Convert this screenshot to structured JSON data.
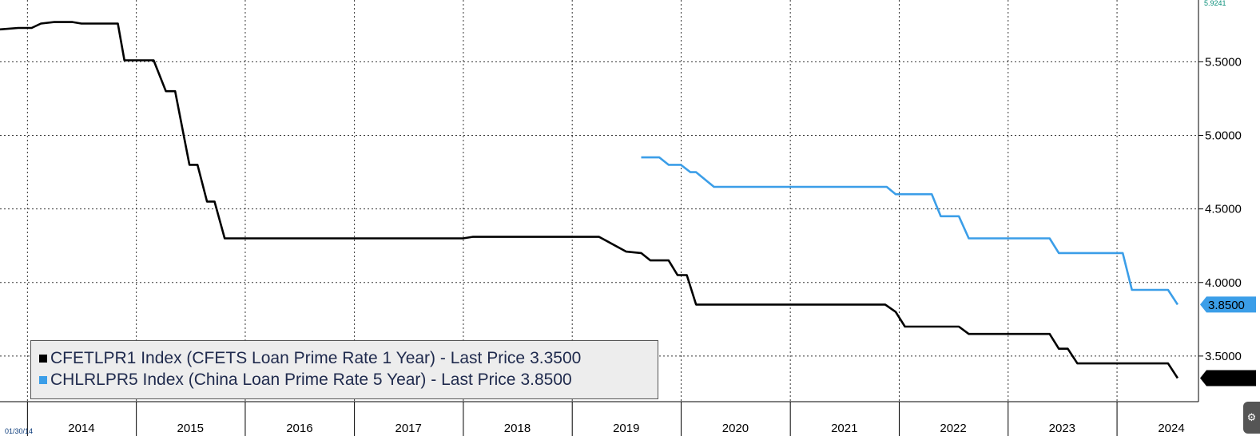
{
  "chart_data": {
    "type": "line",
    "y_ticks": [
      "5.5000",
      "5.0000",
      "4.5000",
      "4.0000",
      "3.5000"
    ],
    "y_tick_values": [
      5.5,
      5.0,
      4.5,
      4.0,
      3.5
    ],
    "y_top_label": "5.9241",
    "ylim": [
      3.19,
      5.92
    ],
    "x_labels": [
      "2014",
      "2015",
      "2016",
      "2017",
      "2018",
      "2019",
      "2020",
      "2021",
      "2022",
      "2023",
      "2024"
    ],
    "start_date_label": "01/30/14",
    "xlim": [
      "2013-10-01",
      "2024-09-30"
    ],
    "grid": true,
    "legend_position": "bottom-left",
    "series": [
      {
        "name": "CFETLPR1 Index (CFETS Loan Prime Rate 1 Year) - Last Price",
        "last_price": "3.3500",
        "color": "#000000",
        "points": [
          [
            "2013-10-01",
            5.72
          ],
          [
            "2013-12-01",
            5.73
          ],
          [
            "2014-01-15",
            5.73
          ],
          [
            "2014-02-15",
            5.76
          ],
          [
            "2014-04-01",
            5.77
          ],
          [
            "2014-06-01",
            5.77
          ],
          [
            "2014-07-01",
            5.76
          ],
          [
            "2014-10-31",
            5.76
          ],
          [
            "2014-11-22",
            5.51
          ],
          [
            "2015-02-28",
            5.51
          ],
          [
            "2015-04-10",
            5.3
          ],
          [
            "2015-05-11",
            5.3
          ],
          [
            "2015-06-28",
            4.8
          ],
          [
            "2015-07-25",
            4.8
          ],
          [
            "2015-08-26",
            4.55
          ],
          [
            "2015-09-20",
            4.55
          ],
          [
            "2015-10-24",
            4.3
          ],
          [
            "2017-12-31",
            4.3
          ],
          [
            "2018-02-01",
            4.31
          ],
          [
            "2019-04-01",
            4.31
          ],
          [
            "2019-07-01",
            4.21
          ],
          [
            "2019-08-20",
            4.2
          ],
          [
            "2019-09-20",
            4.15
          ],
          [
            "2019-11-20",
            4.15
          ],
          [
            "2019-12-20",
            4.05
          ],
          [
            "2020-01-20",
            4.05
          ],
          [
            "2020-02-20",
            3.85
          ],
          [
            "2021-11-15",
            3.85
          ],
          [
            "2021-12-20",
            3.8
          ],
          [
            "2022-01-20",
            3.7
          ],
          [
            "2022-07-20",
            3.7
          ],
          [
            "2022-08-22",
            3.65
          ],
          [
            "2023-05-20",
            3.65
          ],
          [
            "2023-06-20",
            3.55
          ],
          [
            "2023-07-20",
            3.55
          ],
          [
            "2023-08-21",
            3.45
          ],
          [
            "2024-06-20",
            3.45
          ],
          [
            "2024-07-22",
            3.35
          ]
        ]
      },
      {
        "name": "CHLRLPR5 Index (China Loan Prime Rate 5 Year) - Last Price",
        "last_price": "3.8500",
        "color": "#3b9ee8",
        "points": [
          [
            "2019-08-20",
            4.85
          ],
          [
            "2019-10-20",
            4.85
          ],
          [
            "2019-11-20",
            4.8
          ],
          [
            "2019-12-31",
            4.8
          ],
          [
            "2020-02-01",
            4.75
          ],
          [
            "2020-02-20",
            4.75
          ],
          [
            "2020-04-20",
            4.65
          ],
          [
            "2021-11-20",
            4.65
          ],
          [
            "2021-12-20",
            4.6
          ],
          [
            "2022-04-20",
            4.6
          ],
          [
            "2022-05-20",
            4.45
          ],
          [
            "2022-07-20",
            4.45
          ],
          [
            "2022-08-22",
            4.3
          ],
          [
            "2023-05-20",
            4.3
          ],
          [
            "2023-06-20",
            4.2
          ],
          [
            "2024-01-20",
            4.2
          ],
          [
            "2024-02-20",
            3.95
          ],
          [
            "2024-06-20",
            3.95
          ],
          [
            "2024-07-22",
            3.85
          ]
        ]
      }
    ]
  }
}
